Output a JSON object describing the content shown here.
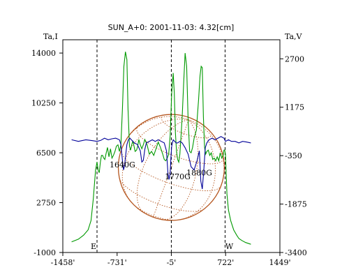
{
  "chart_data": {
    "type": "line",
    "title": "SUN_A+0: 2001-11-03: 4.32[cm]",
    "xlabel": "",
    "y_left_label": "Ta,I",
    "y_right_label": "Ta,V",
    "xlim": [
      -1458,
      1449
    ],
    "ylim_left": [
      -1000,
      15000
    ],
    "ylim_right": [
      -3400,
      3300
    ],
    "x_ticks": [
      "-1458'",
      "-731'",
      "-5'",
      "722'",
      "1449'"
    ],
    "x_tick_values": [
      -1458,
      -731,
      -5,
      722,
      1449
    ],
    "y_left_ticks": [
      "-1000",
      "2750",
      "6500",
      "10250",
      "14000"
    ],
    "y_left_tick_values": [
      -1000,
      2750,
      6500,
      10250,
      14000
    ],
    "y_right_ticks": [
      "-3400",
      "-1875",
      "-350",
      "1175",
      "2700"
    ],
    "y_right_tick_values": [
      -3400,
      -1875,
      -350,
      1175,
      2700
    ],
    "limb_markers": [
      {
        "label": "E",
        "x": -1000
      },
      {
        "label": "",
        "x": -5
      },
      {
        "label": "W",
        "x": 715
      }
    ],
    "annotations": [
      {
        "text": "1640G",
        "x": -660,
        "y": 5400
      },
      {
        "text": "1770G",
        "x": 80,
        "y": 4500
      },
      {
        "text": "1880G",
        "x": 370,
        "y": 4800
      }
    ],
    "solar_disk": {
      "center_x": -5,
      "center_y": 5400,
      "radius": 710
    },
    "series": [
      {
        "name": "",
        "axis": "left",
        "color": "#009900",
        "x": [
          -1340,
          -1250,
          -1180,
          -1120,
          -1080,
          -1050,
          -1020,
          -1000,
          -985,
          -970,
          -955,
          -940,
          -925,
          -910,
          -895,
          -880,
          -860,
          -840,
          -820,
          -800,
          -780,
          -760,
          -740,
          -720,
          -700,
          -680,
          -660,
          -640,
          -620,
          -600,
          -585,
          -565,
          -550,
          -535,
          -520,
          -505,
          -490,
          -470,
          -455,
          -440,
          -420,
          -400,
          -380,
          -360,
          -330,
          -300,
          -270,
          -240,
          -210,
          -180,
          -150,
          -120,
          -100,
          -80,
          -60,
          -40,
          -20,
          0,
          20,
          35,
          50,
          65,
          80,
          95,
          110,
          125,
          140,
          160,
          180,
          200,
          220,
          240,
          260,
          280,
          300,
          330,
          360,
          380,
          395,
          410,
          425,
          440,
          455,
          470,
          490,
          510,
          530,
          550,
          570,
          590,
          610,
          630,
          650,
          670,
          690,
          700,
          710,
          720,
          740,
          760,
          790,
          830,
          870,
          900,
          940,
          990,
          1060
        ],
        "y": [
          -200,
          0,
          300,
          700,
          1400,
          3000,
          5200,
          5800,
          5200,
          5000,
          5800,
          6300,
          6300,
          6100,
          6000,
          6400,
          6900,
          6200,
          6800,
          6100,
          6300,
          6600,
          7000,
          7100,
          6600,
          7100,
          9800,
          13000,
          14100,
          13500,
          9800,
          7000,
          6700,
          7100,
          7400,
          7000,
          6600,
          6700,
          7000,
          7500,
          7100,
          6800,
          7100,
          7500,
          7100,
          6400,
          6600,
          6300,
          6800,
          7300,
          6900,
          6400,
          6000,
          5900,
          6100,
          6400,
          7800,
          11000,
          12500,
          11000,
          8000,
          6600,
          6000,
          5800,
          6400,
          7800,
          9200,
          11700,
          14000,
          13000,
          9000,
          6600,
          6500,
          6900,
          7600,
          8200,
          10500,
          12300,
          13000,
          12900,
          9200,
          6900,
          6400,
          6600,
          6700,
          6300,
          6500,
          6000,
          6100,
          5900,
          6200,
          5900,
          6500,
          6100,
          6300,
          6700,
          6700,
          6400,
          3400,
          2200,
          1400,
          700,
          300,
          50,
          -100,
          -250,
          -380
        ]
      },
      {
        "name": "",
        "axis": "right",
        "color": "#000099",
        "x": [
          -1340,
          -1250,
          -1150,
          -1050,
          -1000,
          -950,
          -900,
          -850,
          -800,
          -750,
          -700,
          -680,
          -660,
          -645,
          -630,
          -615,
          -600,
          -580,
          -560,
          -540,
          -500,
          -460,
          -420,
          -400,
          -380,
          -360,
          -340,
          -300,
          -260,
          -220,
          -180,
          -140,
          -100,
          -70,
          -50,
          -35,
          -20,
          -10,
          0,
          20,
          40,
          60,
          80,
          110,
          140,
          180,
          220,
          260,
          300,
          340,
          370,
          390,
          410,
          430,
          450,
          470,
          500,
          540,
          580,
          620,
          660,
          700,
          720,
          760,
          800,
          850,
          900,
          950,
          1000,
          1060
        ],
        "y": [
          150,
          100,
          150,
          120,
          100,
          130,
          200,
          150,
          180,
          200,
          150,
          0,
          -500,
          -800,
          -650,
          -300,
          0,
          150,
          200,
          150,
          50,
          0,
          -200,
          -550,
          -500,
          -150,
          50,
          100,
          150,
          100,
          150,
          100,
          50,
          -200,
          -900,
          -1100,
          -900,
          -400,
          -50,
          150,
          100,
          50,
          50,
          100,
          50,
          -100,
          -300,
          -700,
          -800,
          -500,
          -200,
          -1150,
          -1400,
          -800,
          -100,
          50,
          150,
          200,
          150,
          200,
          250,
          200,
          100,
          150,
          100,
          100,
          50,
          100,
          80,
          50
        ]
      }
    ]
  }
}
